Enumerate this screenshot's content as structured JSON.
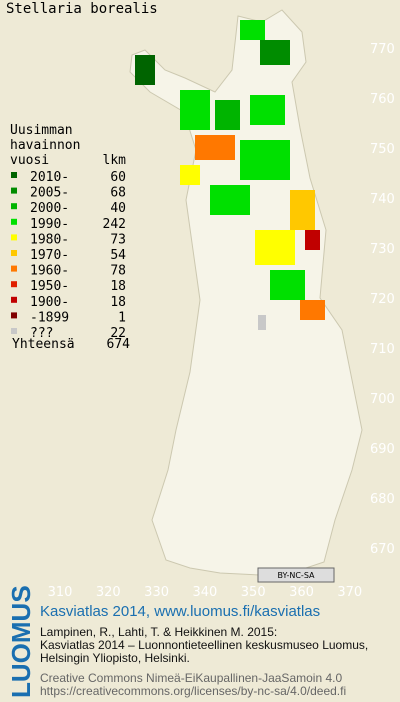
{
  "title": "Stellaria borealis",
  "legend": {
    "heading": [
      "Uusimman",
      "havainnon"
    ],
    "columns": [
      "vuosi",
      "lkm"
    ],
    "rows": [
      {
        "label": "2010-",
        "count": 60,
        "color": "#006400"
      },
      {
        "label": "2005-",
        "count": 68,
        "color": "#008c00"
      },
      {
        "label": "2000-",
        "count": 40,
        "color": "#00b400"
      },
      {
        "label": "1990-",
        "count": 242,
        "color": "#00e000"
      },
      {
        "label": "1980-",
        "count": 73,
        "color": "#ffff00"
      },
      {
        "label": "1970-",
        "count": 54,
        "color": "#ffc800"
      },
      {
        "label": "1960-",
        "count": 78,
        "color": "#ff7800"
      },
      {
        "label": "1950-",
        "count": 18,
        "color": "#e02000"
      },
      {
        "label": "1900-",
        "count": 18,
        "color": "#c00000"
      },
      {
        "label": "-1899",
        "count": 1,
        "color": "#800000"
      },
      {
        "label": "???",
        "count": 22,
        "color": "#c8c8c8"
      }
    ],
    "total": {
      "label": "Yhteensä",
      "count": 674
    }
  },
  "map": {
    "xticks": [
      310,
      320,
      330,
      340,
      350,
      360,
      370
    ],
    "yticks": [
      670,
      680,
      690,
      700,
      710,
      720,
      730,
      740,
      750,
      760,
      770
    ]
  },
  "badge": "BY-NC-SA",
  "footer": {
    "logo": "LUOMUS",
    "title": "Kasviatlas 2014, www.luomus.fi/kasviatlas",
    "citation": [
      "Lampinen, R., Lahti, T. & Heikkinen M. 2015:",
      "Kasviatlas 2014 – Luonnontieteellinen keskusmuseo Luomus,",
      "Helsingin Yliopisto, Helsinki."
    ],
    "license": [
      "Creative Commons Nimeä-EiKaupallinen-JaaSamoin 4.0",
      "https://creativecommons.org/licenses/by-nc-sa/4.0/deed.fi"
    ]
  }
}
